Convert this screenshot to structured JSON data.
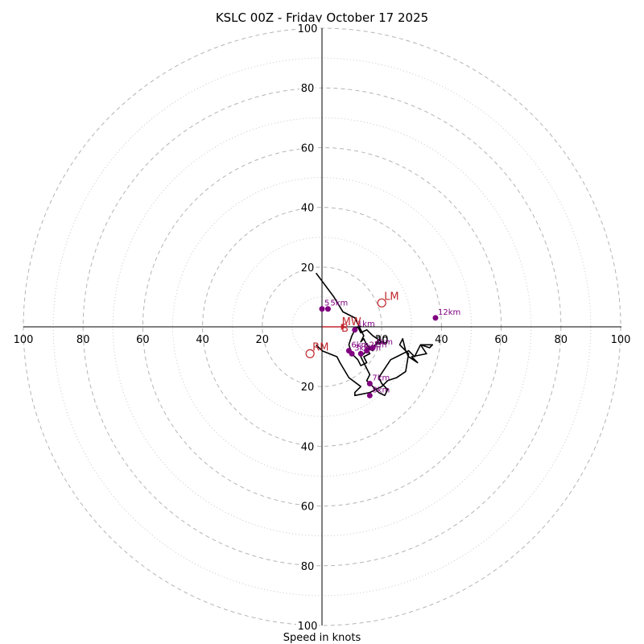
{
  "chart_data": {
    "type": "hodograph",
    "title": "KSLC 00Z - Friday October 17 2025",
    "xlabel": "Speed in knots",
    "ylabel": "",
    "range": 100,
    "ring_major": [
      20,
      40,
      60,
      80,
      100
    ],
    "ring_minor": [
      10,
      30,
      50,
      70,
      90
    ],
    "ticks": {
      "right": [
        "20",
        "40",
        "60",
        "80",
        "100"
      ],
      "left": [
        "20",
        "40",
        "60",
        "80",
        "100"
      ],
      "up": [
        "20",
        "40",
        "60",
        "80",
        "100"
      ],
      "down": [
        "20",
        "40",
        "60",
        "80",
        "100"
      ]
    },
    "ring_label_20": "20",
    "trace": {
      "color": "#000000",
      "u": [
        -2,
        4,
        7,
        11,
        12,
        14,
        13,
        14,
        15,
        16,
        17,
        15,
        16,
        14,
        15,
        13,
        12,
        10,
        9,
        10,
        11,
        12,
        13,
        15,
        17,
        20,
        16,
        13,
        14,
        15,
        16,
        15,
        17,
        19,
        21,
        22,
        20,
        19,
        21,
        23,
        25,
        29,
        31,
        33,
        36,
        37,
        33,
        35,
        30,
        32,
        29,
        28,
        27,
        26,
        29,
        28,
        25,
        22,
        20,
        16,
        11,
        11,
        13,
        9,
        6,
        5,
        0,
        -2
      ],
      "v": [
        18,
        10,
        5,
        3,
        1,
        -3,
        -5,
        -4,
        -6,
        -7,
        -8,
        -7,
        -9,
        -10,
        -12,
        -13,
        -11,
        -9,
        -6,
        -3,
        -1,
        0,
        -2,
        -1,
        -3,
        -5,
        -7,
        -10,
        -12,
        -14,
        -16,
        -18,
        -20,
        -22,
        -23,
        -21,
        -19,
        -17,
        -14,
        -11,
        -10,
        -8,
        -10,
        -6,
        -7,
        -6,
        -6,
        -9,
        -10,
        -12,
        -10,
        -8,
        -4,
        -6,
        -9,
        -15,
        -17,
        -18,
        -20,
        -22,
        -23,
        -22,
        -20,
        -17,
        -12,
        -10,
        -8,
        -6
      ]
    },
    "height_markers": {
      "color": "#800080",
      "points": [
        {
          "label": "1km",
          "u": 11,
          "v": -1
        },
        {
          "label": "2km",
          "u": 15,
          "v": -8
        },
        {
          "label": "3km",
          "u": 10,
          "v": -9
        },
        {
          "label": "4km",
          "u": 17,
          "v": -7
        },
        {
          "label": "5km",
          "u": 13,
          "v": -9
        },
        {
          "label": "6km",
          "u": 9,
          "v": -8
        },
        {
          "label": "7km",
          "u": 16,
          "v": -19
        },
        {
          "label": "8km",
          "u": 16,
          "v": -23
        },
        {
          "label": "12km",
          "u": 38,
          "v": 3
        },
        {
          "label": "5",
          "u": 0,
          "v": 6
        },
        {
          "label": "5km",
          "u": 2,
          "v": 6
        }
      ]
    },
    "storm_motion": {
      "color": "#c1272d",
      "points": [
        {
          "label": "LM",
          "u": 20,
          "v": 8
        },
        {
          "label": "RM",
          "u": -4,
          "v": -9
        },
        {
          "label": "MW",
          "u": 8,
          "v": 0
        },
        {
          "label": "B",
          "u": 7,
          "v": 0
        }
      ],
      "vector": {
        "u1": 0,
        "v1": 0,
        "u2": 8,
        "v2": 0
      }
    }
  }
}
